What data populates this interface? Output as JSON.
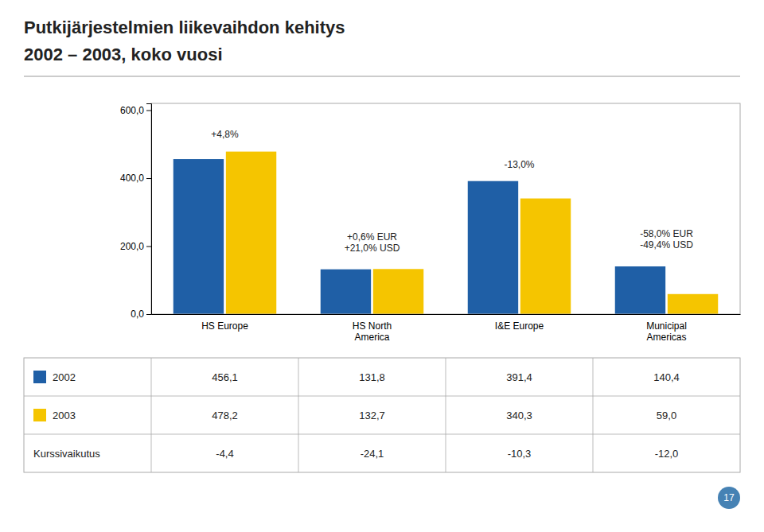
{
  "chart_data": {
    "type": "bar",
    "title": "Putkijärjestelmien liikevaihdon kehitys",
    "subtitle": "2002 – 2003, koko vuosi",
    "categories": [
      "HS Europe",
      "HS North\nAmerica",
      "I&E Europe",
      "Municipal\nAmericas"
    ],
    "series": [
      {
        "name": "2002",
        "color": "#1F5FA6",
        "values": [
          456.1,
          131.8,
          391.4,
          140.4
        ],
        "value_labels": [
          "456,1",
          "131,8",
          "391,4",
          "140,4"
        ]
      },
      {
        "name": "2003",
        "color": "#F5C500",
        "values": [
          478.2,
          132.7,
          340.3,
          59.0
        ],
        "value_labels": [
          "478,2",
          "132,7",
          "340,3",
          "59,0"
        ]
      }
    ],
    "ylim": [
      0,
      620
    ],
    "yticks": [
      {
        "value": 0,
        "label": "0,0"
      },
      {
        "value": 200,
        "label": "200,0"
      },
      {
        "value": 400,
        "label": "400,0"
      },
      {
        "value": 600,
        "label": "600,0"
      }
    ],
    "grid": false,
    "annotations": [
      {
        "x": "HS Europe",
        "y": 510,
        "text": "+4,8%"
      },
      {
        "x": "HS North\nAmerica",
        "y": 175,
        "text": "+0,6% EUR\n+21,0% USD"
      },
      {
        "x": "I&E Europe",
        "y": 420,
        "text": "-13,0%"
      },
      {
        "x": "Municipal\nAmericas",
        "y": 185,
        "text": "-58,0% EUR\n-49,4% USD"
      }
    ],
    "table": [
      {
        "name": "Kurssivaikutus",
        "cells": [
          "-4,4",
          "-24,1",
          "-10,3",
          "-12,0"
        ]
      }
    ],
    "page_number": "17"
  }
}
